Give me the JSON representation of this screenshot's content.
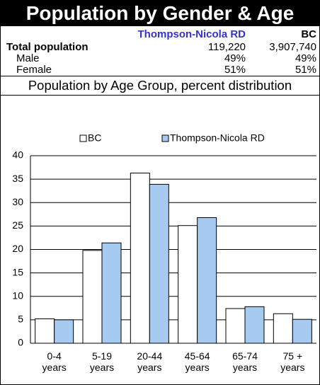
{
  "header": {
    "title": "Population by Gender & Age"
  },
  "table": {
    "columns": [
      "Thompson-Nicola RD",
      "BC"
    ],
    "rows": [
      [
        "Total population",
        "119,220",
        "3,907,740"
      ],
      [
        "Male",
        "49%",
        "49%"
      ],
      [
        "Female",
        "51%",
        "51%"
      ]
    ]
  },
  "section_title": "Population by Age Group, percent distribution",
  "chart_data": {
    "type": "bar",
    "categories": [
      "0-4 years",
      "5-19 years",
      "20-44 years",
      "45-64 years",
      "65-74 years",
      "75 + years"
    ],
    "series": [
      {
        "name": "BC",
        "color": "#ffffff",
        "values": [
          5.2,
          19.8,
          36.3,
          25.1,
          7.4,
          6.3
        ]
      },
      {
        "name": "Thompson-Nicola RD",
        "color": "#a6caf0",
        "values": [
          5.0,
          21.4,
          33.9,
          26.8,
          7.8,
          5.1
        ]
      }
    ],
    "ylim": [
      0,
      40
    ],
    "yticks": [
      0,
      5,
      10,
      15,
      20,
      25,
      30,
      35,
      40
    ],
    "grid": true,
    "legend": "top"
  }
}
